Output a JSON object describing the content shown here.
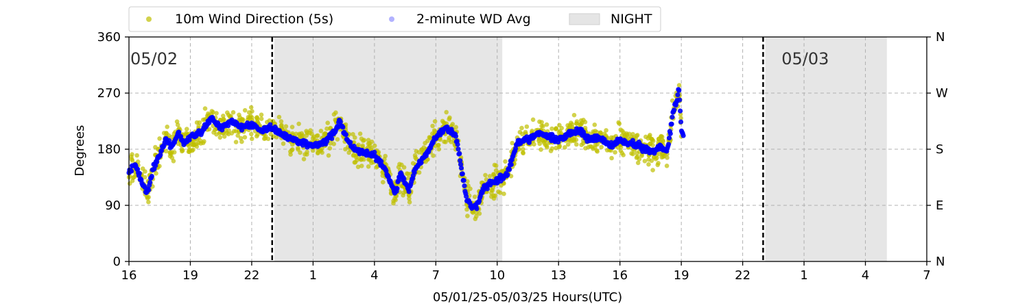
{
  "chart_data": {
    "type": "scatter",
    "xlabel": "05/01/25-05/03/25  Hours(UTC)",
    "ylabel": "Degrees",
    "ylim": [
      0,
      360
    ],
    "xlim": [
      16,
      55
    ],
    "x_unit": "hours from 00:00 UTC 05/01/25",
    "x_tick_values": [
      16,
      19,
      22,
      25,
      28,
      31,
      34,
      37,
      40,
      43,
      46,
      49,
      52,
      55
    ],
    "x_tick_labels": [
      "16",
      "19",
      "22",
      "1",
      "4",
      "7",
      "10",
      "13",
      "16",
      "19",
      "22",
      "1",
      "4",
      "7"
    ],
    "y_ticks": [
      0,
      90,
      180,
      270,
      360
    ],
    "y_ticks_right": [
      {
        "value": 0,
        "label": "N"
      },
      {
        "value": 90,
        "label": "E"
      },
      {
        "value": 180,
        "label": "S"
      },
      {
        "value": 270,
        "label": "W"
      },
      {
        "value": 360,
        "label": "N"
      }
    ],
    "grid": true,
    "legend_position": "top-left, above plot",
    "day_markers": [
      {
        "x": 23,
        "label": "05/02"
      },
      {
        "x": 47,
        "label": "05/03"
      }
    ],
    "night_periods": [
      [
        23.1,
        34.25
      ],
      [
        47.1,
        53.05
      ]
    ],
    "series": [
      {
        "name": "10m Wind Direction (5s)",
        "color": "#bfbf00",
        "marker": "dot",
        "x": [
          16.0,
          16.3,
          16.6,
          16.9,
          17.2,
          17.5,
          17.8,
          18.1,
          18.4,
          18.7,
          19.0,
          19.5,
          20.0,
          20.5,
          21.0,
          21.5,
          22.0,
          22.5,
          23.0,
          23.5,
          24.0,
          24.5,
          25.0,
          25.5,
          26.0,
          26.3,
          26.7,
          27.0,
          27.5,
          28.0,
          28.5,
          29.0,
          29.3,
          29.7,
          30.0,
          30.5,
          31.0,
          31.5,
          32.0,
          32.5,
          32.8,
          33.0,
          33.3,
          33.6,
          34.0,
          34.5,
          35.0,
          35.5,
          36.0,
          36.5,
          37.0,
          37.5,
          38.0,
          38.5,
          39.0,
          39.5,
          40.0,
          40.5,
          41.0,
          41.5,
          42.0,
          42.3,
          42.6,
          42.9,
          43.0,
          43.1
        ],
        "y": [
          145,
          155,
          130,
          110,
          150,
          170,
          195,
          185,
          205,
          190,
          200,
          205,
          230,
          215,
          225,
          215,
          220,
          210,
          215,
          205,
          195,
          190,
          185,
          190,
          205,
          225,
          195,
          180,
          175,
          170,
          150,
          110,
          140,
          115,
          150,
          170,
          200,
          215,
          200,
          100,
          85,
          90,
          115,
          125,
          130,
          140,
          190,
          195,
          205,
          200,
          195,
          205,
          210,
          195,
          200,
          185,
          195,
          190,
          185,
          175,
          185,
          175,
          240,
          275,
          210,
          205
        ]
      },
      {
        "name": "2-minute WD Avg",
        "color": "#0000ff",
        "marker": "dot",
        "x": [
          16.0,
          16.3,
          16.6,
          16.9,
          17.2,
          17.5,
          17.8,
          18.1,
          18.4,
          18.7,
          19.0,
          19.5,
          20.0,
          20.5,
          21.0,
          21.5,
          22.0,
          22.5,
          23.0,
          23.5,
          24.0,
          24.5,
          25.0,
          25.5,
          26.0,
          26.3,
          26.7,
          27.0,
          27.5,
          28.0,
          28.5,
          29.0,
          29.3,
          29.7,
          30.0,
          30.5,
          31.0,
          31.5,
          32.0,
          32.5,
          32.8,
          33.0,
          33.3,
          33.6,
          34.0,
          34.5,
          35.0,
          35.5,
          36.0,
          36.5,
          37.0,
          37.5,
          38.0,
          38.5,
          39.0,
          39.5,
          40.0,
          40.5,
          41.0,
          41.5,
          42.0,
          42.3,
          42.6,
          42.9,
          43.0,
          43.1
        ],
        "y": [
          145,
          155,
          130,
          110,
          150,
          170,
          195,
          185,
          205,
          190,
          200,
          205,
          230,
          215,
          225,
          215,
          220,
          210,
          215,
          205,
          195,
          190,
          185,
          190,
          205,
          225,
          195,
          180,
          175,
          170,
          150,
          110,
          140,
          115,
          150,
          170,
          200,
          215,
          200,
          100,
          85,
          90,
          115,
          125,
          130,
          140,
          190,
          195,
          205,
          200,
          195,
          205,
          210,
          195,
          200,
          185,
          195,
          190,
          185,
          175,
          185,
          175,
          240,
          275,
          210,
          205
        ]
      }
    ],
    "night_legend_label": "NIGHT"
  }
}
